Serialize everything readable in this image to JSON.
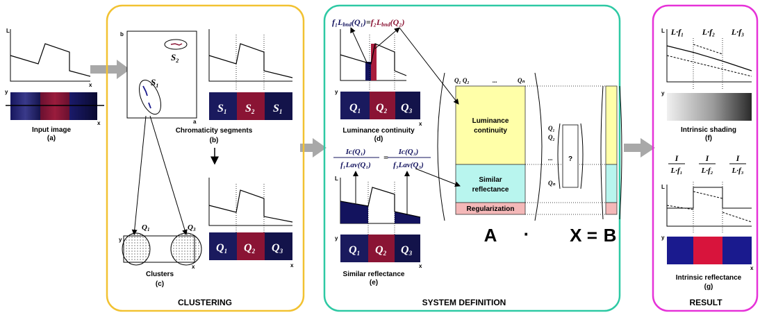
{
  "panels": {
    "input": {
      "caption": "Input image",
      "letter": "(a)"
    },
    "clustering": {
      "title": "CLUSTERING",
      "chroma_caption": "Chromaticity segments",
      "chroma_letter": "(b)",
      "clusters_caption": "Clusters",
      "clusters_letter": "(c)",
      "axis_b": "b",
      "axis_a": "a",
      "seg1": "S",
      "seg1_sub": "1",
      "seg2": "S",
      "seg2_sub": "2",
      "q1": "Q",
      "q1_sub": "1",
      "q2": "Q",
      "q2_sub": "2",
      "q3": "Q",
      "q3_sub": "3"
    },
    "system": {
      "title": "SYSTEM DEFINITION",
      "lum_caption": "Luminance continuity",
      "lum_letter": "(d)",
      "refl_caption": "Similar reflectance",
      "refl_letter": "(e)",
      "block_lum_1": "Luminance",
      "block_lum_2": "continuity",
      "block_refl_1": "Similar",
      "block_refl_2": "reflectance",
      "block_reg": "Regularization",
      "matrix_a": "A",
      "dot_op": "·",
      "matrix_x": "X =",
      "matrix_b": "B",
      "unknown": "?",
      "col_header": "Q₁ Q₂",
      "col_dots": "...",
      "col_last": "Qₙ",
      "eq1_left": "f₁L",
      "eq1_left_sub": "bnd",
      "eq1_left_arg": "(Q₁)",
      "eq1_eq": "=",
      "eq1_right": "f₂L",
      "eq1_right_sub": "bnd",
      "eq1_right_arg": "(Q₂)",
      "eq2_num_l": "Iᴄ(Q₁)",
      "eq2_den_l": "f₁Lav(Q₁)",
      "eq2_num_r": "Iᴄ(Q₃)",
      "eq2_den_r": "f₃Lav(Q₃)",
      "x_q1": "Q₁",
      "x_q2": "Q₂",
      "x_dots": "...",
      "x_qn": "Qₙ"
    },
    "result": {
      "title": "RESULT",
      "shading_caption": "Intrinsic shading",
      "shading_letter": "(f)",
      "refl_caption": "Intrinsic reflectance",
      "refl_letter": "(g)",
      "shade_1": "L·f₁",
      "shade_2": "L·f₂",
      "shade_3": "L·f₃",
      "frac_num": "I",
      "frac_1": "L·f₁",
      "frac_2": "L·f₂",
      "frac_3": "L·f₃"
    }
  },
  "axes": {
    "l": "L",
    "x": "x",
    "y": "y"
  },
  "colors": {
    "clustering_border": "#f2c232",
    "system_border": "#2ec9a4",
    "result_border": "#e632d8",
    "navy": "#13135e",
    "crimson": "#8a1434",
    "red": "#d8143c",
    "blue": "#1a1a8e",
    "lum_block": "#ffffa8",
    "refl_block": "#b8f5ee",
    "reg_block": "#f4b8b8",
    "arrow_gray": "#a8a8a8"
  }
}
